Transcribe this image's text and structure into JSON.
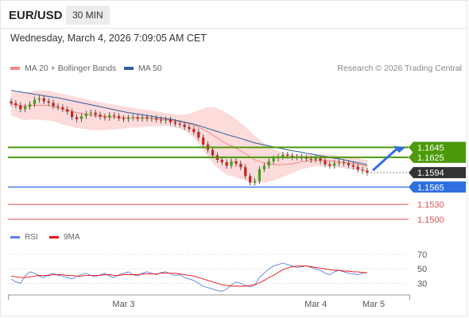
{
  "header": {
    "symbol": "EUR/USD",
    "timeframe": "30 MIN"
  },
  "datetime": "Wednesday, March 4, 2026 7:09:05 AM CET",
  "legend": {
    "items": [
      {
        "label": "MA 20 + Bollinger Bands",
        "color": "#f28b82"
      },
      {
        "label": "MA 50",
        "color": "#2d5fa0"
      }
    ],
    "credit": "Research © 2026 Trading Central"
  },
  "rsi_legend": {
    "items": [
      {
        "label": "RSI",
        "color": "#5b7fde"
      },
      {
        "label": "9MA",
        "color": "#e11"
      }
    ]
  },
  "colors": {
    "resistance": "#4c9a0a",
    "current": "#2f6fe0",
    "support": "#e15050",
    "last": "#333333",
    "candle_up": "#43a020",
    "candle_down": "#cc2020"
  },
  "chart_data": [
    {
      "type": "candlestick",
      "symbol": "EUR/USD",
      "x_ticks": [
        "Mar 3",
        "Mar 4",
        "Mar 5"
      ],
      "ylim": [
        1.149,
        1.179
      ],
      "levels": {
        "resistance": [
          1.1645,
          1.1625
        ],
        "last": 1.1594,
        "pivot": 1.1565,
        "support": [
          1.153,
          1.15
        ]
      },
      "level_labels": [
        "1.1645",
        "1.1625",
        "1.1594",
        "1.1565",
        "1.1530",
        "1.1500"
      ],
      "close": [
        1.1734,
        1.173,
        1.1722,
        1.1727,
        1.1732,
        1.1741,
        1.1744,
        1.1738,
        1.1735,
        1.1728,
        1.1726,
        1.1722,
        1.1717,
        1.1706,
        1.1702,
        1.1708,
        1.1713,
        1.1715,
        1.1711,
        1.1707,
        1.1705,
        1.171,
        1.1708,
        1.1704,
        1.1702,
        1.1705,
        1.1706,
        1.1703,
        1.1706,
        1.1703,
        1.1704,
        1.1701,
        1.1699,
        1.1701,
        1.1696,
        1.1693,
        1.1691,
        1.1686,
        1.1682,
        1.1676,
        1.1665,
        1.1651,
        1.164,
        1.1629,
        1.162,
        1.1615,
        1.1608,
        1.1617,
        1.1612,
        1.1605,
        1.1587,
        1.1574,
        1.1577,
        1.1601,
        1.1608,
        1.1617,
        1.1623,
        1.1626,
        1.163,
        1.1628,
        1.1625,
        1.1626,
        1.1624,
        1.1622,
        1.162,
        1.1623,
        1.1618,
        1.1611,
        1.1608,
        1.1613,
        1.1615,
        1.1613,
        1.1609,
        1.1606,
        1.16,
        1.1598,
        1.1594
      ],
      "ma20": [
        1.1733,
        1.1731,
        1.1729,
        1.1728,
        1.1729,
        1.173,
        1.173,
        1.173,
        1.1729,
        1.1727,
        1.1725,
        1.1722,
        1.172,
        1.1718,
        1.1715,
        1.1714,
        1.1712,
        1.171,
        1.1709,
        1.1708,
        1.1707,
        1.1707,
        1.1706,
        1.1706,
        1.1705,
        1.1705,
        1.1705,
        1.1704,
        1.1704,
        1.1704,
        1.1703,
        1.1703,
        1.1702,
        1.1701,
        1.17,
        1.1698,
        1.1697,
        1.1695,
        1.1693,
        1.169,
        1.1686,
        1.1681,
        1.1676,
        1.167,
        1.1664,
        1.1658,
        1.1652,
        1.1648,
        1.1643,
        1.1638,
        1.1632,
        1.1626,
        1.162,
        1.1617,
        1.1614,
        1.1612,
        1.161,
        1.161,
        1.161,
        1.1611,
        1.1612,
        1.1614,
        1.1616,
        1.1617,
        1.1618,
        1.1619,
        1.1619,
        1.1619,
        1.1618,
        1.1617,
        1.1616,
        1.1615,
        1.1614,
        1.1613,
        1.1611,
        1.1609,
        1.1607
      ],
      "ma50": [
        1.176,
        1.1758,
        1.1757,
        1.1755,
        1.1754,
        1.1752,
        1.1751,
        1.1749,
        1.1748,
        1.1746,
        1.1745,
        1.1743,
        1.1741,
        1.1739,
        1.1737,
        1.1735,
        1.1733,
        1.1731,
        1.1729,
        1.1727,
        1.1725,
        1.1723,
        1.1721,
        1.1719,
        1.1717,
        1.1715,
        1.1714,
        1.1712,
        1.1711,
        1.1709,
        1.1708,
        1.1706,
        1.1705,
        1.1703,
        1.1702,
        1.17,
        1.1698,
        1.1696,
        1.1694,
        1.1692,
        1.1689,
        1.1686,
        1.1683,
        1.168,
        1.1677,
        1.1674,
        1.1671,
        1.1668,
        1.1666,
        1.1663,
        1.166,
        1.1657,
        1.1654,
        1.1652,
        1.165,
        1.1648,
        1.1646,
        1.1644,
        1.1642,
        1.164,
        1.1638,
        1.1637,
        1.1635,
        1.1633,
        1.1632,
        1.163,
        1.1628,
        1.1627,
        1.1625,
        1.1623,
        1.1622,
        1.162,
        1.1618,
        1.1616,
        1.1614,
        1.1612,
        1.161
      ],
      "bb_width": [
        0.0024,
        0.0025,
        0.0027,
        0.0028,
        0.0028,
        0.0029,
        0.0029,
        0.003,
        0.003,
        0.003,
        0.003,
        0.0031,
        0.0031,
        0.0031,
        0.0031,
        0.0031,
        0.003,
        0.003,
        0.0029,
        0.0028,
        0.0027,
        0.0026,
        0.0025,
        0.0024,
        0.0022,
        0.0021,
        0.002,
        0.0019,
        0.0018,
        0.0017,
        0.0016,
        0.0015,
        0.0014,
        0.0013,
        0.0013,
        0.0013,
        0.0014,
        0.0016,
        0.002,
        0.0026,
        0.0034,
        0.0042,
        0.005,
        0.0056,
        0.006,
        0.0062,
        0.0062,
        0.0061,
        0.0059,
        0.0056,
        0.0054,
        0.0051,
        0.0048,
        0.0044,
        0.004,
        0.0036,
        0.0032,
        0.0028,
        0.0025,
        0.0022,
        0.0019,
        0.0017,
        0.0015,
        0.0014,
        0.0013,
        0.0012,
        0.0012,
        0.0012,
        0.0012,
        0.0012,
        0.0012,
        0.0012,
        0.0012,
        0.0012,
        0.0012,
        0.0012,
        0.0012
      ]
    },
    {
      "type": "line",
      "name": "RSI",
      "ylim": [
        15,
        80
      ],
      "y_ticks": [
        70,
        50,
        30
      ],
      "series": [
        {
          "name": "RSI",
          "values": [
            36,
            32,
            30,
            40,
            46,
            44,
            40,
            38,
            42,
            44,
            41,
            40,
            38,
            36,
            40,
            42,
            44,
            41,
            39,
            42,
            44,
            40,
            38,
            42,
            44,
            46,
            42,
            40,
            44,
            46,
            44,
            42,
            45,
            46,
            43,
            41,
            42,
            38,
            36,
            34,
            30,
            26,
            24,
            22,
            20,
            19,
            22,
            28,
            32,
            30,
            27,
            25,
            28,
            38,
            44,
            50,
            54,
            56,
            58,
            56,
            54,
            52,
            53,
            54,
            52,
            50,
            48,
            44,
            42,
            46,
            48,
            46,
            44,
            43,
            42,
            44,
            45
          ]
        },
        {
          "name": "9MA",
          "values": [
            40,
            39,
            38,
            38,
            39,
            40,
            41,
            41,
            41,
            42,
            42,
            42,
            41,
            41,
            40,
            40,
            41,
            41,
            41,
            41,
            42,
            42,
            41,
            41,
            42,
            42,
            42,
            42,
            43,
            43,
            43,
            43,
            44,
            44,
            44,
            44,
            43,
            42,
            41,
            40,
            38,
            36,
            34,
            32,
            30,
            28,
            27,
            26,
            26,
            26,
            26,
            27,
            28,
            31,
            34,
            38,
            41,
            45,
            49,
            51,
            53,
            54,
            54,
            54,
            53,
            52,
            51,
            50,
            49,
            48,
            48,
            47,
            47,
            46,
            46,
            45,
            45
          ]
        }
      ]
    }
  ]
}
